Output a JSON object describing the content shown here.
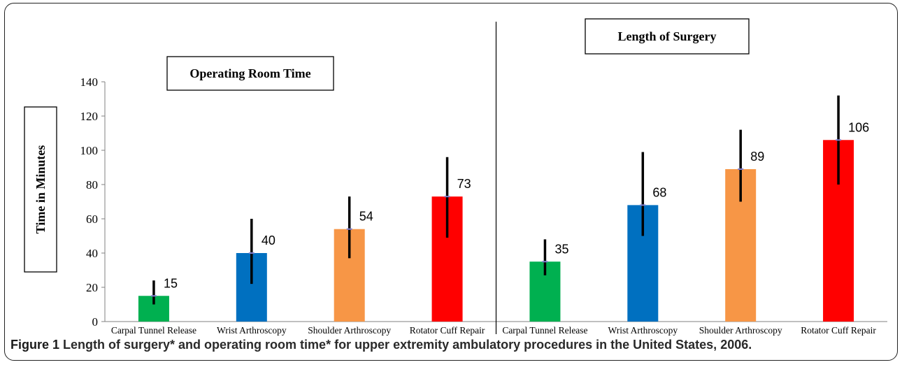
{
  "caption": {
    "label": "Figure 1",
    "text": "Length of surgery* and operating room time* for upper extremity ambulatory procedures in the United States, 2006."
  },
  "chart_data": {
    "type": "bar",
    "ylabel": "Time in Minutes",
    "ylim": [
      0,
      140
    ],
    "yticks": [
      0,
      20,
      40,
      60,
      80,
      100,
      120,
      140
    ],
    "grid": false,
    "error_bars": true,
    "panels": [
      {
        "title": "Operating Room Time",
        "categories": [
          "Carpal Tunnel Release",
          "Wrist Arthroscopy",
          "Shoulder Arthroscopy",
          "Rotator Cuff Repair"
        ],
        "values": [
          15,
          40,
          54,
          73
        ],
        "error_low": [
          10,
          22,
          37,
          49
        ],
        "error_high": [
          24,
          60,
          73,
          96
        ],
        "colors": [
          "#00b050",
          "#0070c0",
          "#f79646",
          "#ff0000"
        ]
      },
      {
        "title": "Length of Surgery",
        "categories": [
          "Carpal Tunnel Release",
          "Wrist Arthroscopy",
          "Shoulder Arthroscopy",
          "Rotator Cuff Repair"
        ],
        "values": [
          35,
          68,
          89,
          106
        ],
        "error_low": [
          27,
          50,
          70,
          80
        ],
        "error_high": [
          48,
          99,
          112,
          132
        ],
        "colors": [
          "#00b050",
          "#0070c0",
          "#f79646",
          "#ff0000"
        ]
      }
    ]
  }
}
